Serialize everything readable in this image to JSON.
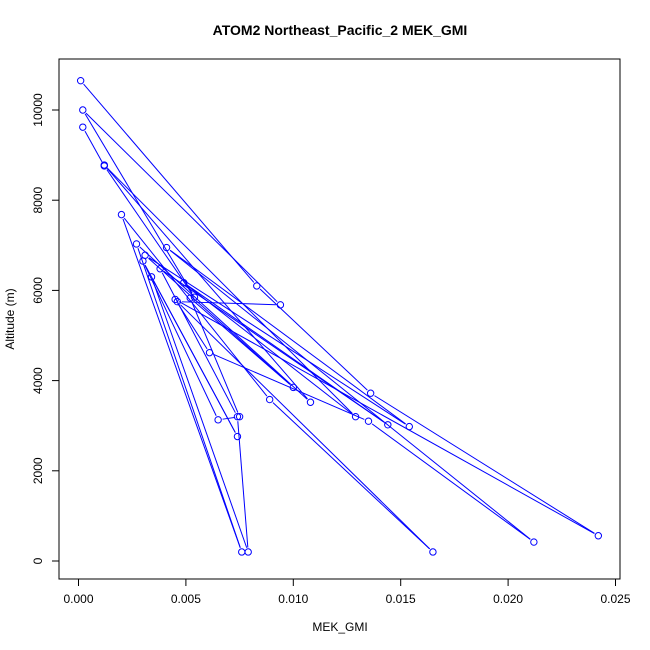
{
  "chart_data": {
    "type": "line",
    "title": "ATOM2 Northeast_Pacific_2 MEK_GMI",
    "xlabel": "MEK_GMI",
    "ylabel": "Altitude (m)",
    "xlim": [
      0.0,
      0.025
    ],
    "ylim": [
      0,
      10750
    ],
    "x_ticks": [
      0.0,
      0.005,
      0.01,
      0.015,
      0.02,
      0.025
    ],
    "x_tick_labels": [
      "0.000",
      "0.005",
      "0.010",
      "0.015",
      "0.020",
      "0.025"
    ],
    "y_ticks": [
      0,
      2000,
      4000,
      6000,
      8000,
      10000
    ],
    "y_tick_labels": [
      "0",
      "2000",
      "4000",
      "6000",
      "8000",
      "10000"
    ],
    "grid": false,
    "series": [
      {
        "color": "#0000ff",
        "marker": "open-circle",
        "points": [
          [
            0.0001,
            10650
          ],
          [
            0.0083,
            6100
          ],
          [
            0.0136,
            3720
          ],
          [
            0.0242,
            560
          ],
          [
            0.0045,
            5800
          ],
          [
            0.0061,
            4620
          ],
          [
            0.0135,
            3100
          ],
          [
            0.0212,
            420
          ],
          [
            0.0041,
            6950
          ],
          [
            0.0154,
            2980
          ],
          [
            0.0031,
            6780
          ],
          [
            0.01,
            3850
          ],
          [
            0.0052,
            5830
          ],
          [
            0.0075,
            3200
          ],
          [
            0.0065,
            3130
          ],
          [
            0.003,
            6650
          ],
          [
            0.0074,
            2760
          ],
          [
            0.0034,
            6300
          ],
          [
            0.0079,
            200
          ],
          [
            0.0074,
            3200
          ],
          [
            0.0038,
            6480
          ],
          [
            0.0144,
            3020
          ],
          [
            0.0049,
            6170
          ],
          [
            0.0129,
            3200
          ],
          [
            0.0012,
            8780
          ],
          [
            0.0108,
            3520
          ],
          [
            0.0027,
            7030
          ],
          [
            0.0076,
            200
          ],
          [
            0.002,
            7680
          ],
          [
            0.0089,
            3580
          ],
          [
            0.0165,
            200
          ],
          [
            0.0046,
            5750
          ],
          [
            0.0094,
            5680
          ],
          [
            0.0002,
            10000
          ],
          [
            0.0054,
            5850
          ],
          [
            0.0012,
            8760
          ],
          [
            0.0002,
            9620
          ]
        ]
      }
    ]
  }
}
